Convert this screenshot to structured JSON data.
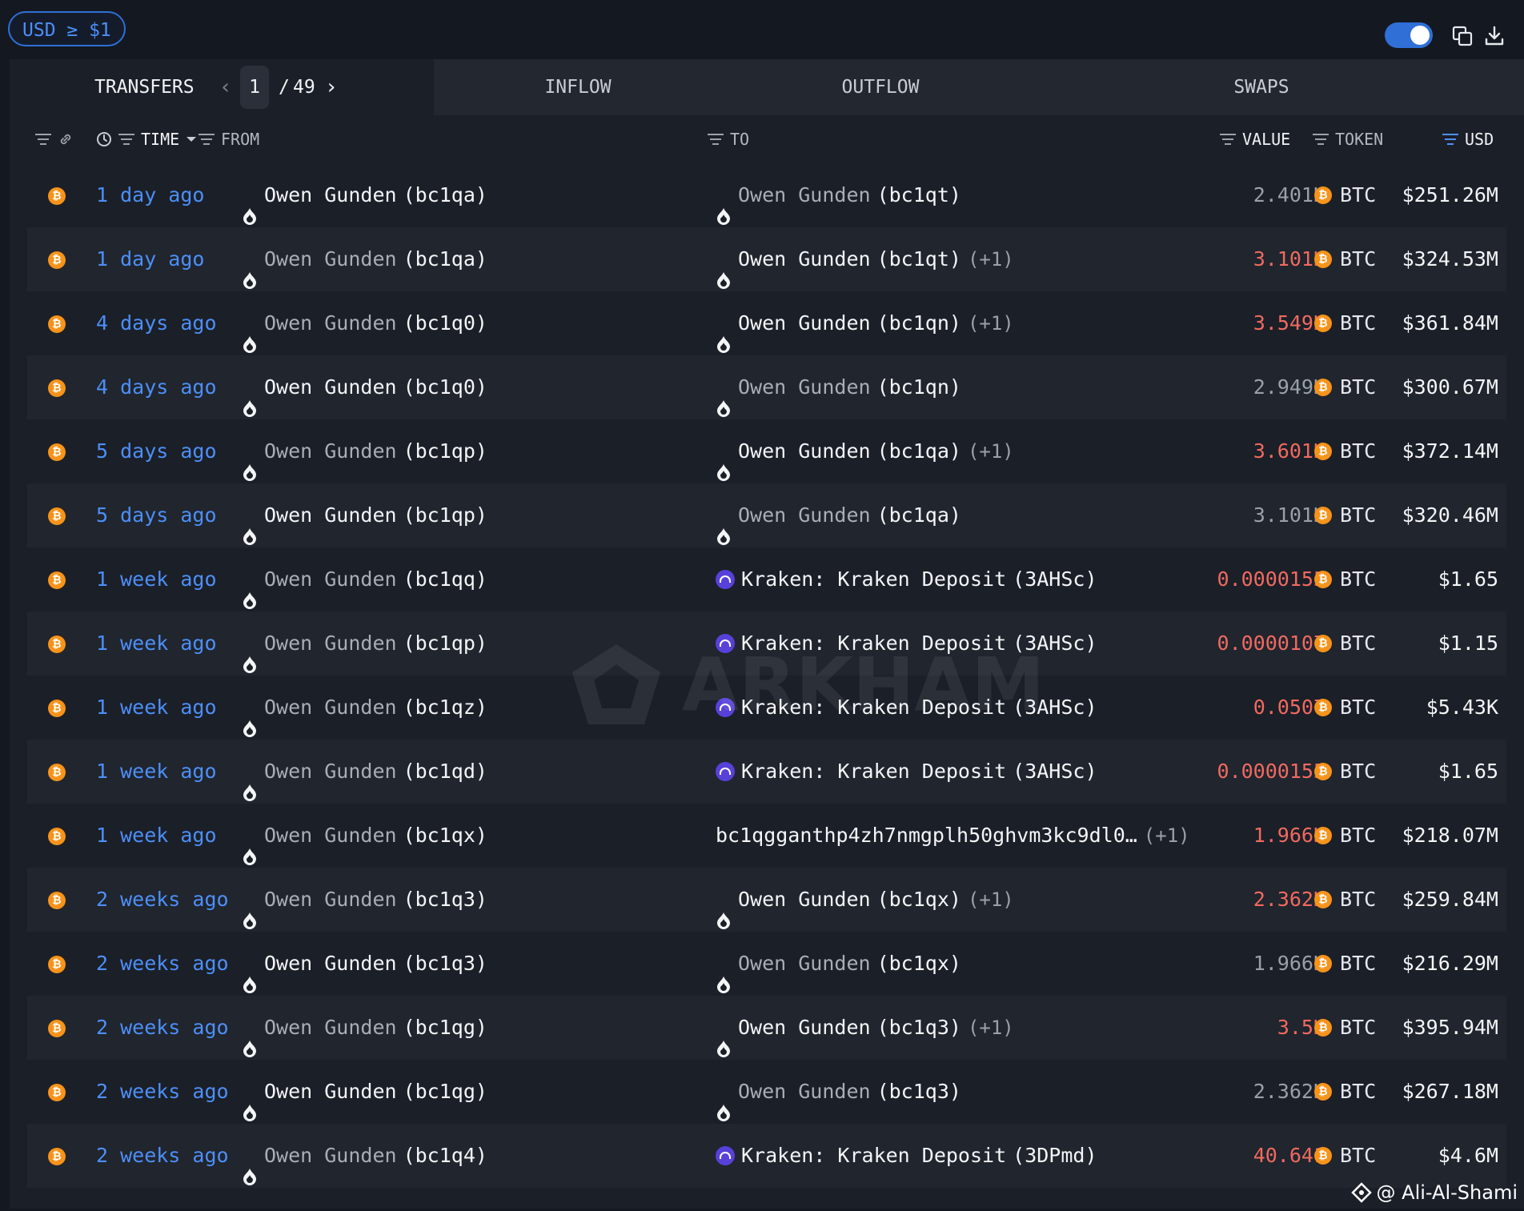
{
  "filter": {
    "usd_pill": "USD ≥ $1"
  },
  "tabs": {
    "transfers": "TRANSFERS",
    "page_current": "1",
    "page_sep": "/",
    "page_total": "49",
    "inflow": "INFLOW",
    "outflow": "OUTFLOW",
    "swaps": "SWAPS"
  },
  "columns": {
    "time": "TIME",
    "from": "FROM",
    "to": "TO",
    "value": "VALUE",
    "token": "TOKEN",
    "usd": "USD"
  },
  "rows": [
    {
      "time": "1 day ago",
      "from_name": "Owen Gunden",
      "from_addr": "(bc1qa)",
      "from_bright": true,
      "to_type": "drop",
      "to_name": "Owen Gunden",
      "to_addr": "(bc1qt)",
      "to_extra": "",
      "to_bright": false,
      "value": "2.401K",
      "value_color": "gray",
      "token": "BTC",
      "usd": "$251.26M"
    },
    {
      "time": "1 day ago",
      "from_name": "Owen Gunden",
      "from_addr": "(bc1qa)",
      "from_bright": false,
      "to_type": "drop",
      "to_name": "Owen Gunden",
      "to_addr": "(bc1qt)",
      "to_extra": "(+1)",
      "to_bright": true,
      "value": "3.101K",
      "value_color": "red",
      "token": "BTC",
      "usd": "$324.53M"
    },
    {
      "time": "4 days ago",
      "from_name": "Owen Gunden",
      "from_addr": "(bc1q0)",
      "from_bright": false,
      "to_type": "drop",
      "to_name": "Owen Gunden",
      "to_addr": "(bc1qn)",
      "to_extra": "(+1)",
      "to_bright": true,
      "value": "3.549K",
      "value_color": "red",
      "token": "BTC",
      "usd": "$361.84M"
    },
    {
      "time": "4 days ago",
      "from_name": "Owen Gunden",
      "from_addr": "(bc1q0)",
      "from_bright": true,
      "to_type": "drop",
      "to_name": "Owen Gunden",
      "to_addr": "(bc1qn)",
      "to_extra": "",
      "to_bright": false,
      "value": "2.949K",
      "value_color": "gray",
      "token": "BTC",
      "usd": "$300.67M"
    },
    {
      "time": "5 days ago",
      "from_name": "Owen Gunden",
      "from_addr": "(bc1qp)",
      "from_bright": false,
      "to_type": "drop",
      "to_name": "Owen Gunden",
      "to_addr": "(bc1qa)",
      "to_extra": "(+1)",
      "to_bright": true,
      "value": "3.601K",
      "value_color": "red",
      "token": "BTC",
      "usd": "$372.14M"
    },
    {
      "time": "5 days ago",
      "from_name": "Owen Gunden",
      "from_addr": "(bc1qp)",
      "from_bright": true,
      "to_type": "drop",
      "to_name": "Owen Gunden",
      "to_addr": "(bc1qa)",
      "to_extra": "",
      "to_bright": false,
      "value": "3.101K",
      "value_color": "gray",
      "token": "BTC",
      "usd": "$320.46M"
    },
    {
      "time": "1 week ago",
      "from_name": "Owen Gunden",
      "from_addr": "(bc1qq)",
      "from_bright": false,
      "to_type": "kraken",
      "to_name": "Kraken: Kraken Deposit",
      "to_addr": "(3AHSc)",
      "to_extra": "",
      "to_bright": true,
      "value": "0.0000155",
      "value_color": "red",
      "token": "BTC",
      "usd": "$1.65"
    },
    {
      "time": "1 week ago",
      "from_name": "Owen Gunden",
      "from_addr": "(bc1qp)",
      "from_bright": false,
      "to_type": "kraken",
      "to_name": "Kraken: Kraken Deposit",
      "to_addr": "(3AHSc)",
      "to_extra": "",
      "to_bright": true,
      "value": "0.0000107",
      "value_color": "red",
      "token": "BTC",
      "usd": "$1.15"
    },
    {
      "time": "1 week ago",
      "from_name": "Owen Gunden",
      "from_addr": "(bc1qz)",
      "from_bright": false,
      "to_type": "kraken",
      "to_name": "Kraken: Kraken Deposit",
      "to_addr": "(3AHSc)",
      "to_extra": "",
      "to_bright": true,
      "value": "0.0507",
      "value_color": "red",
      "token": "BTC",
      "usd": "$5.43K"
    },
    {
      "time": "1 week ago",
      "from_name": "Owen Gunden",
      "from_addr": "(bc1qd)",
      "from_bright": false,
      "to_type": "kraken",
      "to_name": "Kraken: Kraken Deposit",
      "to_addr": "(3AHSc)",
      "to_extra": "",
      "to_bright": true,
      "value": "0.0000155",
      "value_color": "red",
      "token": "BTC",
      "usd": "$1.65"
    },
    {
      "time": "1 week ago",
      "from_name": "Owen Gunden",
      "from_addr": "(bc1qx)",
      "from_bright": false,
      "to_type": "none",
      "to_name": "bc1qgganthp4zh7nmgplh50ghvm3kc9dl0…",
      "to_addr": "",
      "to_extra": "(+1)",
      "to_bright": true,
      "value": "1.966K",
      "value_color": "red",
      "token": "BTC",
      "usd": "$218.07M"
    },
    {
      "time": "2 weeks ago",
      "from_name": "Owen Gunden",
      "from_addr": "(bc1q3)",
      "from_bright": false,
      "to_type": "drop",
      "to_name": "Owen Gunden",
      "to_addr": "(bc1qx)",
      "to_extra": "(+1)",
      "to_bright": true,
      "value": "2.362K",
      "value_color": "red",
      "token": "BTC",
      "usd": "$259.84M"
    },
    {
      "time": "2 weeks ago",
      "from_name": "Owen Gunden",
      "from_addr": "(bc1q3)",
      "from_bright": true,
      "to_type": "drop",
      "to_name": "Owen Gunden",
      "to_addr": "(bc1qx)",
      "to_extra": "",
      "to_bright": false,
      "value": "1.966K",
      "value_color": "gray",
      "token": "BTC",
      "usd": "$216.29M"
    },
    {
      "time": "2 weeks ago",
      "from_name": "Owen Gunden",
      "from_addr": "(bc1qg)",
      "from_bright": false,
      "to_type": "drop",
      "to_name": "Owen Gunden",
      "to_addr": "(bc1q3)",
      "to_extra": "(+1)",
      "to_bright": true,
      "value": "3.5K",
      "value_color": "red",
      "token": "BTC",
      "usd": "$395.94M"
    },
    {
      "time": "2 weeks ago",
      "from_name": "Owen Gunden",
      "from_addr": "(bc1qg)",
      "from_bright": true,
      "to_type": "drop",
      "to_name": "Owen Gunden",
      "to_addr": "(bc1q3)",
      "to_extra": "",
      "to_bright": false,
      "value": "2.362K",
      "value_color": "gray",
      "token": "BTC",
      "usd": "$267.18M"
    },
    {
      "time": "2 weeks ago",
      "from_name": "Owen Gunden",
      "from_addr": "(bc1q4)",
      "from_bright": false,
      "to_type": "kraken",
      "to_name": "Kraken: Kraken Deposit",
      "to_addr": "(3DPmd)",
      "to_extra": "",
      "to_bright": true,
      "value": "40.641",
      "value_color": "red",
      "token": "BTC",
      "usd": "$4.6M"
    }
  ],
  "watermark": "ARKHAM",
  "credit": "@ Ali-Al-Shami",
  "colors": {
    "accent": "#2f6fd6",
    "link": "#4d8ff7",
    "outflow_red": "#f06a5f",
    "btc": "#f7931a",
    "kraken": "#5741d9"
  }
}
